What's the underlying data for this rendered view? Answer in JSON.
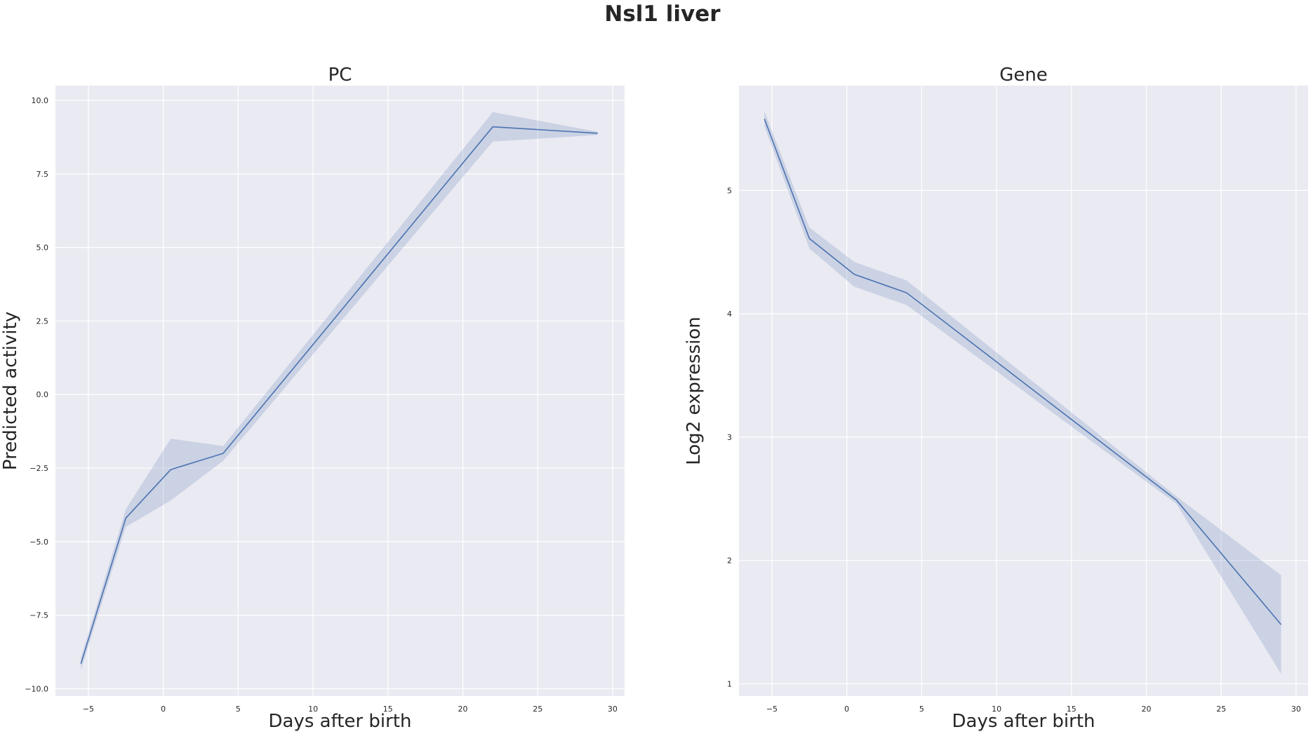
{
  "figure": {
    "title": "Nsl1 liver"
  },
  "colors": {
    "background": "#eaeaf2",
    "grid": "#ffffff",
    "line": "#4c72b0",
    "band": "#4c72b0"
  },
  "chart_data": [
    {
      "type": "line",
      "title": "PC",
      "xlabel": "Days after birth",
      "ylabel": "Predicted activity",
      "xlim": [
        -7.2,
        30.8
      ],
      "ylim": [
        -10.25,
        10.5
      ],
      "xticks": [
        -5,
        0,
        5,
        10,
        15,
        20,
        25,
        30
      ],
      "xtick_labels": [
        "−5",
        "0",
        "5",
        "10",
        "15",
        "20",
        "25",
        "30"
      ],
      "yticks": [
        -10,
        -7.5,
        -5,
        -2.5,
        0,
        2.5,
        5,
        7.5,
        10
      ],
      "ytick_labels": [
        "−10.0",
        "−7.5",
        "−5.0",
        "−2.5",
        "0.0",
        "2.5",
        "5.0",
        "7.5",
        "10.0"
      ],
      "grid": true,
      "series": [
        {
          "x": [
            -5.5,
            -2.5,
            0.5,
            4,
            22,
            29
          ],
          "y": [
            -9.15,
            -4.2,
            -2.55,
            -2.0,
            9.1,
            8.88
          ],
          "ci_lower": [
            -9.35,
            -4.5,
            -3.6,
            -2.25,
            8.6,
            8.82
          ],
          "ci_upper": [
            -8.95,
            -3.9,
            -1.5,
            -1.75,
            9.6,
            8.93
          ]
        }
      ]
    },
    {
      "type": "line",
      "title": "Gene",
      "xlabel": "Days after birth",
      "ylabel": "Log2 expression",
      "xlim": [
        -7.2,
        30.8
      ],
      "ylim": [
        0.9,
        5.85
      ],
      "xticks": [
        -5,
        0,
        5,
        10,
        15,
        20,
        25,
        30
      ],
      "xtick_labels": [
        "−5",
        "0",
        "5",
        "10",
        "15",
        "20",
        "25",
        "30"
      ],
      "yticks": [
        1,
        2,
        3,
        4,
        5
      ],
      "ytick_labels": [
        "1",
        "2",
        "3",
        "4",
        "5"
      ],
      "grid": true,
      "series": [
        {
          "x": [
            -5.5,
            -2.5,
            0.5,
            4,
            22,
            29
          ],
          "y": [
            5.58,
            4.61,
            4.32,
            4.17,
            2.49,
            1.48
          ],
          "ci_lower": [
            5.52,
            4.53,
            4.22,
            4.07,
            2.46,
            1.08
          ],
          "ci_upper": [
            5.64,
            4.7,
            4.42,
            4.27,
            2.52,
            1.88
          ]
        }
      ]
    }
  ]
}
